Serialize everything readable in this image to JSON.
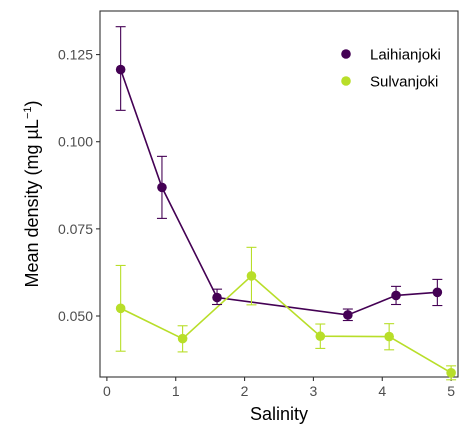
{
  "chart_data": {
    "type": "line",
    "title": "",
    "xlabel": "Salinity",
    "ylabel_parts": [
      "Mean density (mg µL",
      "−1",
      ")"
    ],
    "xlim": [
      -0.1,
      5.1
    ],
    "ylim": [
      0.0325,
      0.1375
    ],
    "x_ticks": [
      0,
      1,
      2,
      3,
      4,
      5
    ],
    "x_tick_labels": [
      "0",
      "1",
      "2",
      "3",
      "4",
      "5"
    ],
    "y_ticks": [
      0.05,
      0.075,
      0.1,
      0.125
    ],
    "y_tick_labels": [
      "0.050",
      "0.075",
      "0.100",
      "0.125"
    ],
    "grid": false,
    "legend_position": "top-right",
    "error_bars": true,
    "series": [
      {
        "name": "Laihianjoki",
        "color": "#440154",
        "points": [
          {
            "x": 0.2,
            "y": 0.1207,
            "lo": 0.109,
            "hi": 0.133
          },
          {
            "x": 0.8,
            "y": 0.0869,
            "lo": 0.078,
            "hi": 0.0958
          },
          {
            "x": 1.6,
            "y": 0.0553,
            "lo": 0.0533,
            "hi": 0.0577
          },
          {
            "x": 3.5,
            "y": 0.0503,
            "lo": 0.0487,
            "hi": 0.052
          },
          {
            "x": 4.2,
            "y": 0.0559,
            "lo": 0.0533,
            "hi": 0.0585
          },
          {
            "x": 4.8,
            "y": 0.0568,
            "lo": 0.053,
            "hi": 0.0605
          }
        ]
      },
      {
        "name": "Sulvanjoki",
        "color": "#b8de29",
        "points": [
          {
            "x": 0.2,
            "y": 0.0522,
            "lo": 0.0399,
            "hi": 0.0645
          },
          {
            "x": 1.1,
            "y": 0.0435,
            "lo": 0.0397,
            "hi": 0.0472
          },
          {
            "x": 2.1,
            "y": 0.0615,
            "lo": 0.0532,
            "hi": 0.0697
          },
          {
            "x": 3.1,
            "y": 0.0442,
            "lo": 0.0407,
            "hi": 0.0477
          },
          {
            "x": 4.1,
            "y": 0.0441,
            "lo": 0.0403,
            "hi": 0.0478
          },
          {
            "x": 5.0,
            "y": 0.0337,
            "lo": 0.0317,
            "hi": 0.0357
          }
        ]
      }
    ]
  }
}
